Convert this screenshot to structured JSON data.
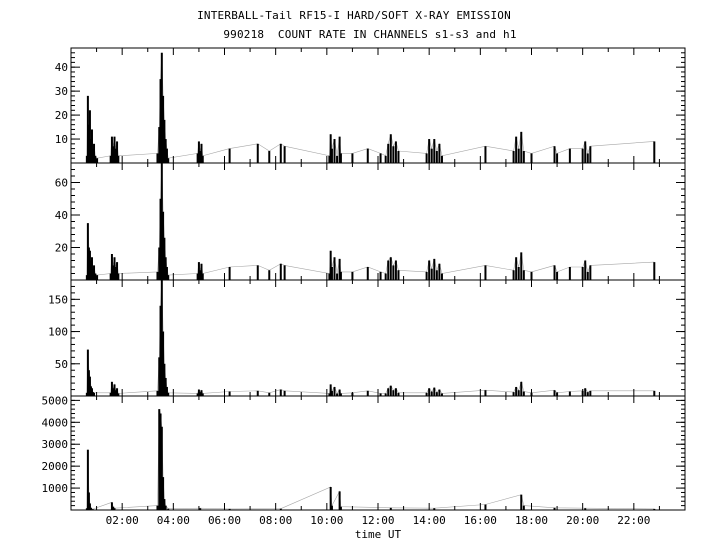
{
  "chart_data": {
    "type": "line",
    "title": "INTERBALL-Tail RF15-I HARD/SOFT X-RAY EMISSION",
    "subtitle": "990218  COUNT RATE IN CHANNELS s1-s3 and h1",
    "xlabel": "time UT",
    "xlim": [
      0,
      24
    ],
    "xticks": [
      2,
      4,
      6,
      8,
      10,
      12,
      14,
      16,
      18,
      20,
      22
    ],
    "xtick_labels": [
      "02:00",
      "04:00",
      "06:00",
      "08:00",
      "10:00",
      "12:00",
      "14:00",
      "16:00",
      "18:00",
      "20:00",
      "22:00"
    ],
    "panels": [
      {
        "channel": "s1",
        "ylim": [
          0,
          48
        ],
        "yticks": [
          10,
          20,
          30,
          40
        ],
        "values": [
          [
            0.62,
            3
          ],
          [
            0.66,
            28
          ],
          [
            0.7,
            16
          ],
          [
            0.74,
            22
          ],
          [
            0.78,
            10
          ],
          [
            0.82,
            14
          ],
          [
            0.86,
            6
          ],
          [
            0.9,
            8
          ],
          [
            0.95,
            3
          ],
          [
            1.02,
            2
          ],
          [
            1.55,
            3
          ],
          [
            1.6,
            11
          ],
          [
            1.65,
            7
          ],
          [
            1.7,
            11
          ],
          [
            1.75,
            6
          ],
          [
            1.8,
            9
          ],
          [
            1.85,
            3
          ],
          [
            3.38,
            4
          ],
          [
            3.45,
            15
          ],
          [
            3.5,
            35
          ],
          [
            3.55,
            46
          ],
          [
            3.6,
            28
          ],
          [
            3.65,
            18
          ],
          [
            3.7,
            10
          ],
          [
            3.75,
            6
          ],
          [
            3.8,
            2
          ],
          [
            4.95,
            4
          ],
          [
            5.0,
            9
          ],
          [
            5.05,
            5
          ],
          [
            5.1,
            8
          ],
          [
            5.15,
            3
          ],
          [
            6.2,
            6
          ],
          [
            7.3,
            8
          ],
          [
            7.75,
            5
          ],
          [
            8.2,
            8
          ],
          [
            8.35,
            7
          ],
          [
            10.1,
            3
          ],
          [
            10.15,
            12
          ],
          [
            10.2,
            6
          ],
          [
            10.3,
            10
          ],
          [
            10.4,
            3
          ],
          [
            10.5,
            11
          ],
          [
            10.55,
            4
          ],
          [
            11.0,
            4
          ],
          [
            11.6,
            6
          ],
          [
            12.1,
            4
          ],
          [
            12.3,
            3
          ],
          [
            12.4,
            8
          ],
          [
            12.5,
            12
          ],
          [
            12.6,
            7
          ],
          [
            12.7,
            9
          ],
          [
            12.8,
            5
          ],
          [
            13.9,
            4
          ],
          [
            14.0,
            10
          ],
          [
            14.1,
            6
          ],
          [
            14.2,
            10
          ],
          [
            14.3,
            5
          ],
          [
            14.4,
            8
          ],
          [
            14.5,
            3
          ],
          [
            16.2,
            7
          ],
          [
            17.3,
            5
          ],
          [
            17.4,
            11
          ],
          [
            17.5,
            6
          ],
          [
            17.6,
            13
          ],
          [
            17.7,
            5
          ],
          [
            18.0,
            4
          ],
          [
            18.9,
            7
          ],
          [
            19.0,
            4
          ],
          [
            19.5,
            6
          ],
          [
            20.0,
            6
          ],
          [
            20.1,
            9
          ],
          [
            20.2,
            4
          ],
          [
            20.3,
            7
          ],
          [
            22.8,
            9
          ]
        ]
      },
      {
        "channel": "s2",
        "ylim": [
          0,
          72
        ],
        "yticks": [
          20,
          40,
          60
        ],
        "values": [
          [
            0.62,
            3
          ],
          [
            0.66,
            35
          ],
          [
            0.7,
            20
          ],
          [
            0.74,
            18
          ],
          [
            0.78,
            12
          ],
          [
            0.82,
            14
          ],
          [
            0.86,
            7
          ],
          [
            0.9,
            9
          ],
          [
            0.95,
            4
          ],
          [
            1.02,
            3
          ],
          [
            1.55,
            4
          ],
          [
            1.6,
            16
          ],
          [
            1.65,
            9
          ],
          [
            1.7,
            14
          ],
          [
            1.75,
            8
          ],
          [
            1.8,
            11
          ],
          [
            1.85,
            4
          ],
          [
            3.38,
            5
          ],
          [
            3.45,
            20
          ],
          [
            3.5,
            50
          ],
          [
            3.55,
            72
          ],
          [
            3.6,
            42
          ],
          [
            3.65,
            26
          ],
          [
            3.7,
            14
          ],
          [
            3.75,
            8
          ],
          [
            3.8,
            3
          ],
          [
            4.95,
            4
          ],
          [
            5.0,
            11
          ],
          [
            5.05,
            6
          ],
          [
            5.1,
            10
          ],
          [
            5.15,
            4
          ],
          [
            6.2,
            8
          ],
          [
            7.3,
            9
          ],
          [
            7.75,
            6
          ],
          [
            8.2,
            10
          ],
          [
            8.35,
            9
          ],
          [
            10.1,
            4
          ],
          [
            10.15,
            18
          ],
          [
            10.2,
            8
          ],
          [
            10.3,
            14
          ],
          [
            10.4,
            4
          ],
          [
            10.5,
            13
          ],
          [
            10.55,
            5
          ],
          [
            11.0,
            5
          ],
          [
            11.6,
            8
          ],
          [
            12.1,
            5
          ],
          [
            12.3,
            4
          ],
          [
            12.4,
            12
          ],
          [
            12.5,
            14
          ],
          [
            12.6,
            9
          ],
          [
            12.7,
            12
          ],
          [
            12.8,
            6
          ],
          [
            13.9,
            5
          ],
          [
            14.0,
            12
          ],
          [
            14.1,
            7
          ],
          [
            14.2,
            13
          ],
          [
            14.3,
            6
          ],
          [
            14.4,
            10
          ],
          [
            14.5,
            4
          ],
          [
            16.2,
            9
          ],
          [
            17.3,
            6
          ],
          [
            17.4,
            14
          ],
          [
            17.5,
            8
          ],
          [
            17.6,
            17
          ],
          [
            17.7,
            6
          ],
          [
            18.0,
            5
          ],
          [
            18.9,
            9
          ],
          [
            19.0,
            5
          ],
          [
            19.5,
            8
          ],
          [
            20.0,
            8
          ],
          [
            20.1,
            12
          ],
          [
            20.2,
            5
          ],
          [
            20.3,
            9
          ],
          [
            22.8,
            11
          ]
        ]
      },
      {
        "channel": "s3",
        "ylim": [
          0,
          180
        ],
        "yticks": [
          50,
          100,
          150
        ],
        "values": [
          [
            0.62,
            5
          ],
          [
            0.66,
            72
          ],
          [
            0.7,
            40
          ],
          [
            0.74,
            30
          ],
          [
            0.78,
            15
          ],
          [
            0.82,
            12
          ],
          [
            0.86,
            6
          ],
          [
            0.9,
            5
          ],
          [
            1.55,
            5
          ],
          [
            1.6,
            22
          ],
          [
            1.65,
            12
          ],
          [
            1.7,
            18
          ],
          [
            1.75,
            9
          ],
          [
            1.8,
            12
          ],
          [
            1.85,
            4
          ],
          [
            3.38,
            8
          ],
          [
            3.45,
            60
          ],
          [
            3.5,
            140
          ],
          [
            3.55,
            180
          ],
          [
            3.6,
            100
          ],
          [
            3.65,
            50
          ],
          [
            3.7,
            28
          ],
          [
            3.75,
            14
          ],
          [
            3.8,
            5
          ],
          [
            4.95,
            4
          ],
          [
            5.0,
            10
          ],
          [
            5.05,
            6
          ],
          [
            5.1,
            9
          ],
          [
            5.15,
            4
          ],
          [
            6.2,
            7
          ],
          [
            7.3,
            8
          ],
          [
            7.75,
            5
          ],
          [
            8.2,
            10
          ],
          [
            8.35,
            8
          ],
          [
            10.1,
            4
          ],
          [
            10.15,
            18
          ],
          [
            10.2,
            8
          ],
          [
            10.3,
            14
          ],
          [
            10.4,
            4
          ],
          [
            10.5,
            10
          ],
          [
            10.55,
            4
          ],
          [
            11.0,
            5
          ],
          [
            11.6,
            8
          ],
          [
            12.1,
            4
          ],
          [
            12.3,
            4
          ],
          [
            12.4,
            12
          ],
          [
            12.5,
            16
          ],
          [
            12.6,
            9
          ],
          [
            12.7,
            12
          ],
          [
            12.8,
            5
          ],
          [
            13.9,
            5
          ],
          [
            14.0,
            12
          ],
          [
            14.1,
            7
          ],
          [
            14.2,
            13
          ],
          [
            14.3,
            6
          ],
          [
            14.4,
            10
          ],
          [
            14.5,
            4
          ],
          [
            16.2,
            9
          ],
          [
            17.3,
            6
          ],
          [
            17.4,
            14
          ],
          [
            17.5,
            9
          ],
          [
            17.6,
            22
          ],
          [
            17.7,
            7
          ],
          [
            18.0,
            5
          ],
          [
            18.9,
            9
          ],
          [
            19.0,
            5
          ],
          [
            19.5,
            7
          ],
          [
            20.0,
            8
          ],
          [
            20.1,
            12
          ],
          [
            20.2,
            6
          ],
          [
            20.3,
            8
          ],
          [
            22.8,
            8
          ]
        ]
      },
      {
        "channel": "h1",
        "ylim": [
          0,
          5200
        ],
        "yticks": [
          1000,
          2000,
          3000,
          4000,
          5000
        ],
        "values": [
          [
            0.62,
            80
          ],
          [
            0.66,
            2750
          ],
          [
            0.7,
            800
          ],
          [
            0.74,
            300
          ],
          [
            0.78,
            100
          ],
          [
            0.85,
            40
          ],
          [
            1.6,
            350
          ],
          [
            1.65,
            150
          ],
          [
            1.7,
            80
          ],
          [
            3.38,
            200
          ],
          [
            3.45,
            4600
          ],
          [
            3.5,
            4400
          ],
          [
            3.55,
            3800
          ],
          [
            3.6,
            1500
          ],
          [
            3.65,
            500
          ],
          [
            3.7,
            200
          ],
          [
            3.8,
            60
          ],
          [
            5.05,
            80
          ],
          [
            6.2,
            50
          ],
          [
            8.2,
            60
          ],
          [
            10.15,
            1050
          ],
          [
            10.2,
            200
          ],
          [
            10.5,
            850
          ],
          [
            10.55,
            150
          ],
          [
            12.5,
            100
          ],
          [
            14.2,
            80
          ],
          [
            16.2,
            250
          ],
          [
            17.6,
            700
          ],
          [
            17.7,
            200
          ],
          [
            18.9,
            100
          ],
          [
            20.1,
            80
          ],
          [
            22.8,
            50
          ]
        ]
      }
    ]
  }
}
